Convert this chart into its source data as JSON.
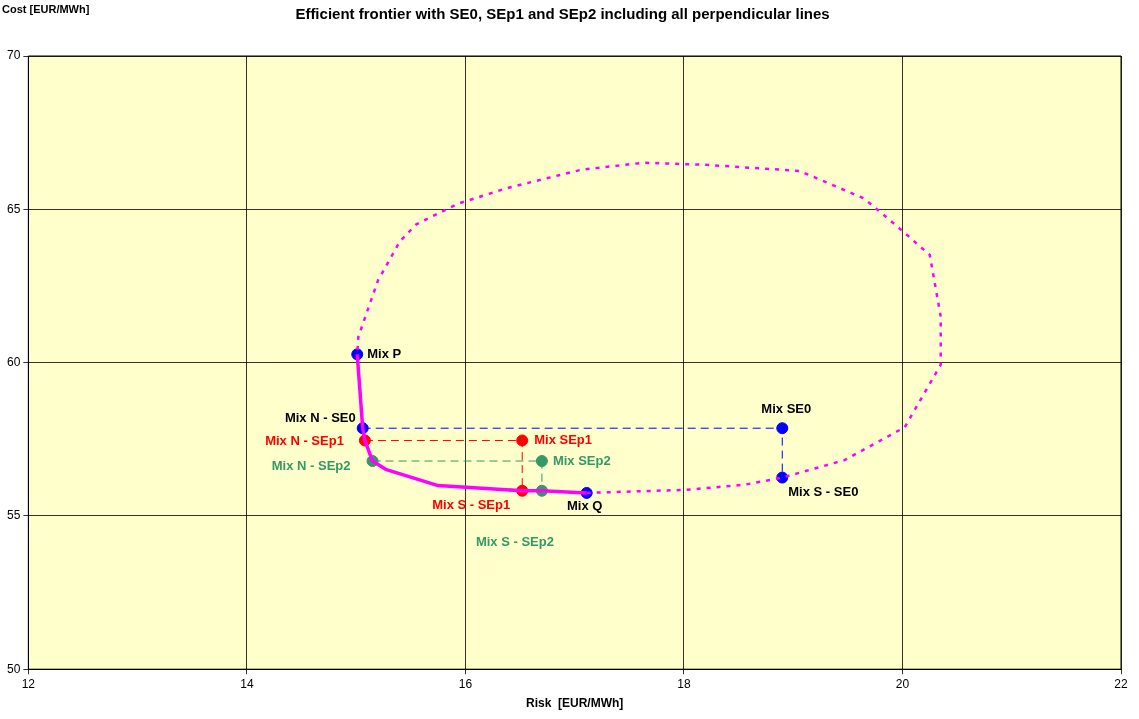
{
  "chart_data": {
    "type": "line",
    "title": "Efficient frontier with SE0, SEp1 and SEp2 including all perpendicular lines",
    "xlabel": "Risk  [EUR/MWh]",
    "ylabel": "Cost [EUR/MWh]",
    "xlim": [
      12,
      22
    ],
    "xticks": [
      12,
      14,
      16,
      18,
      20,
      22
    ],
    "ylim": [
      50,
      70
    ],
    "yticks": [
      50,
      55,
      60,
      65,
      70
    ],
    "grid": true,
    "legend": false,
    "series": [
      {
        "type": "line",
        "color": "#ff00ff",
        "line_style": "dotted",
        "marker": "none",
        "x": [
          17.11,
          18.02,
          18.56,
          18.9,
          19.47,
          20.02,
          20.35,
          20.35,
          20.25,
          19.93,
          19.65,
          19.06,
          18.2,
          17.63,
          17.06,
          16.38,
          15.93,
          15.55,
          15.4,
          15.2,
          15.02,
          15.01
        ],
        "values": [
          55.75,
          55.85,
          56.02,
          56.25,
          56.82,
          57.89,
          59.93,
          61.5,
          63.51,
          64.51,
          65.35,
          66.25,
          66.45,
          66.52,
          66.29,
          65.69,
          65.18,
          64.51,
          63.95,
          62.68,
          60.84,
          60.27
        ]
      },
      {
        "type": "line",
        "color": "#ff00ff",
        "line_style": "solid",
        "marker": "none",
        "x": [
          15.01,
          15.06,
          15.08,
          15.15,
          15.27,
          15.75,
          16.52,
          16.7,
          17.11
        ],
        "values": [
          60.27,
          57.86,
          57.46,
          56.79,
          56.52,
          55.99,
          55.82,
          55.82,
          55.75
        ]
      },
      {
        "type": "line",
        "color": "#0000ff",
        "line_style": "dashed",
        "marker": "none",
        "x": [
          15.06,
          18.9,
          18.9
        ],
        "values": [
          57.86,
          57.86,
          56.25
        ]
      },
      {
        "type": "line",
        "color": "#ff0000",
        "line_style": "dashed",
        "marker": "none",
        "x": [
          15.08,
          16.52,
          16.52
        ],
        "values": [
          57.46,
          57.46,
          55.82
        ]
      },
      {
        "type": "line",
        "color": "#339966",
        "line_style": "dashed",
        "marker": "none",
        "x": [
          15.15,
          16.7,
          16.7
        ],
        "values": [
          56.79,
          56.79,
          55.82
        ]
      },
      {
        "type": "scatter",
        "color": "#0000ff",
        "marker": "circle",
        "x": [
          15.01,
          15.06,
          17.11,
          18.9,
          18.9
        ],
        "values": [
          60.27,
          57.86,
          55.75,
          57.86,
          56.25
        ]
      },
      {
        "type": "scatter",
        "color": "#ff0000",
        "marker": "circle",
        "x": [
          15.08,
          16.52,
          16.52
        ],
        "values": [
          57.46,
          57.46,
          55.82
        ]
      },
      {
        "type": "scatter",
        "color": "#339966",
        "marker": "circle",
        "x": [
          15.15,
          16.7,
          16.7
        ],
        "values": [
          56.79,
          56.79,
          55.82
        ]
      }
    ],
    "annotations": [
      {
        "text": "Mix P",
        "x": 15.01,
        "y": 60.27
      },
      {
        "text": "Mix N - SE0",
        "x": 15.06,
        "y": 57.86
      },
      {
        "text": "Mix N - SEp1",
        "x": 15.08,
        "y": 57.46
      },
      {
        "text": "Mix N - SEp2",
        "x": 15.15,
        "y": 56.79
      },
      {
        "text": "Mix SEp1",
        "x": 16.52,
        "y": 57.46
      },
      {
        "text": "Mix SEp2",
        "x": 16.7,
        "y": 56.79
      },
      {
        "text": "Mix S - SEp1",
        "x": 16.52,
        "y": 55.82
      },
      "Mix S - SEp2",
      {
        "text": "Mix Q",
        "x": 17.11,
        "y": 55.75
      },
      {
        "text": "Mix SE0",
        "x": 18.9,
        "y": 57.86
      },
      {
        "text": "Mix S - SE0",
        "x": 18.9,
        "y": 56.25
      }
    ]
  }
}
